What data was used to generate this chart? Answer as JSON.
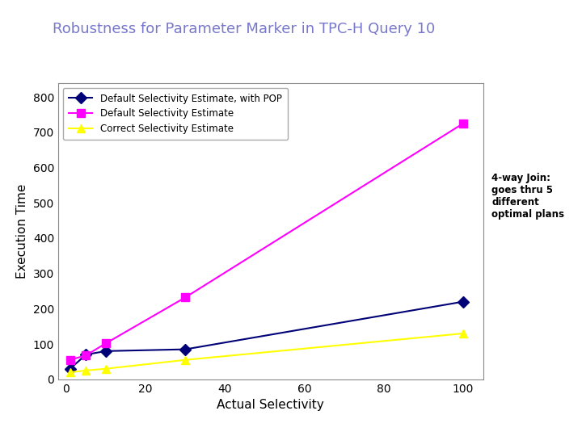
{
  "title": "Robustness for Parameter Marker in TPC-H Query 10",
  "title_color": "#7777cc",
  "xlabel": "Actual Selectivity",
  "ylabel": "Execution Time",
  "xlim": [
    -2,
    105
  ],
  "ylim": [
    0,
    840
  ],
  "xticks": [
    0,
    20,
    40,
    60,
    80,
    100
  ],
  "yticks": [
    0,
    100,
    200,
    300,
    400,
    500,
    600,
    700,
    800
  ],
  "series": [
    {
      "label": "Default Selectivity Estimate, with POP",
      "x": [
        1,
        5,
        10,
        30,
        100
      ],
      "y": [
        30,
        70,
        80,
        85,
        220
      ],
      "color": "#000077",
      "marker": "D",
      "markersize": 7,
      "linewidth": 1.5
    },
    {
      "label": "Default Selectivity Estimate",
      "x": [
        1,
        5,
        10,
        30,
        100
      ],
      "y": [
        55,
        68,
        102,
        232,
        725
      ],
      "color": "#ff00ff",
      "marker": "s",
      "markersize": 7,
      "linewidth": 1.5
    },
    {
      "label": "Correct Selectivity Estimate",
      "x": [
        1,
        5,
        10,
        30,
        100
      ],
      "y": [
        20,
        25,
        30,
        55,
        130
      ],
      "color": "#ffff00",
      "marker": "^",
      "markersize": 7,
      "linewidth": 1.5
    }
  ],
  "annotation_text": "4-way Join:\ngoes thru 5\ndifferent\noptimal plans",
  "background_color": "#ffffff"
}
